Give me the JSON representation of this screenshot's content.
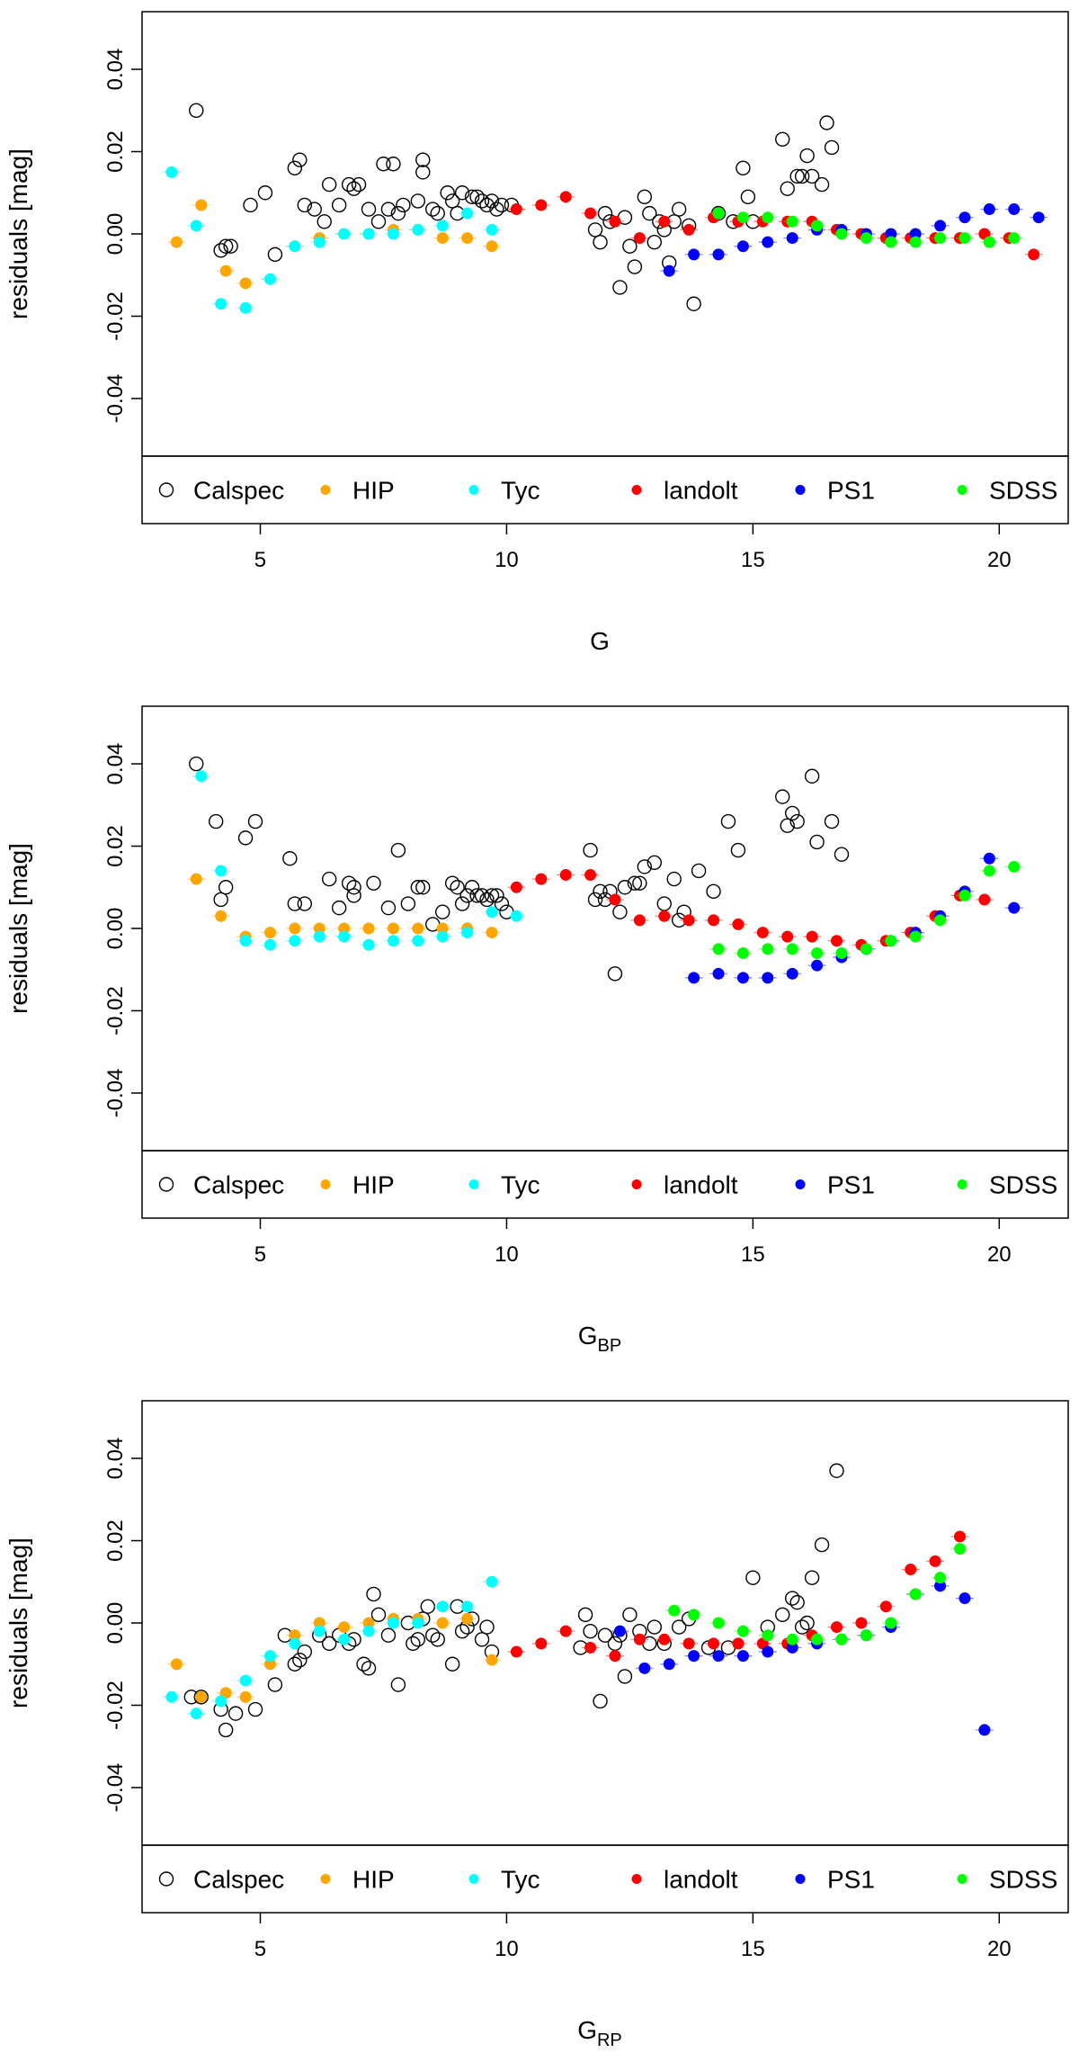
{
  "legend": [
    {
      "key": "Calspec",
      "label": "Calspec",
      "marker": "open-circle",
      "color": "#000000"
    },
    {
      "key": "HIP",
      "label": "HIP",
      "marker": "dot",
      "color": "#ffa500"
    },
    {
      "key": "Tyc",
      "label": "Tyc",
      "marker": "dot",
      "color": "#00ffff"
    },
    {
      "key": "landolt",
      "label": "landolt",
      "marker": "dot",
      "color": "#ff0000"
    },
    {
      "key": "PS1",
      "label": "PS1",
      "marker": "dot",
      "color": "#0000ff"
    },
    {
      "key": "SDSS",
      "label": "SDSS",
      "marker": "dot",
      "color": "#00ff00"
    }
  ],
  "chart_data": [
    {
      "type": "scatter",
      "title": "",
      "xlabel": "G",
      "xlabel_sub": "",
      "ylabel": "residuals [mag]",
      "xlim": [
        2.6,
        21.4
      ],
      "ylim": [
        -0.054,
        0.054
      ],
      "xticks": [
        5,
        10,
        15,
        20
      ],
      "yticks": [
        -0.04,
        -0.02,
        0.0,
        0.02,
        0.04
      ],
      "ytick_labels": [
        "-0.04",
        "-0.02",
        "0.00",
        "0.02",
        "0.04"
      ],
      "series": [
        {
          "name": "Calspec",
          "x": [
            3.7,
            4.2,
            4.3,
            4.4,
            4.8,
            5.1,
            5.3,
            5.7,
            5.8,
            5.9,
            6.1,
            6.3,
            6.4,
            6.6,
            6.8,
            6.9,
            7.0,
            7.2,
            7.4,
            7.5,
            7.6,
            7.7,
            7.8,
            7.9,
            8.2,
            8.3,
            8.3,
            8.5,
            8.6,
            8.8,
            8.9,
            9.0,
            9.1,
            9.3,
            9.4,
            9.5,
            9.6,
            9.7,
            9.8,
            9.9,
            10.1,
            11.8,
            11.9,
            12.0,
            12.1,
            12.3,
            12.4,
            12.5,
            12.6,
            12.8,
            12.9,
            13.0,
            13.1,
            13.2,
            13.3,
            13.4,
            13.5,
            13.7,
            13.8,
            14.3,
            14.6,
            14.8,
            14.9,
            15.0,
            15.6,
            15.7,
            15.9,
            16.0,
            16.1,
            16.2,
            16.4,
            16.5,
            16.6
          ],
          "y": [
            0.03,
            -0.004,
            -0.003,
            -0.003,
            0.007,
            0.01,
            -0.005,
            0.016,
            0.018,
            0.007,
            0.006,
            0.003,
            0.012,
            0.007,
            0.012,
            0.011,
            0.012,
            0.006,
            0.003,
            0.017,
            0.006,
            0.017,
            0.005,
            0.007,
            0.008,
            0.015,
            0.018,
            0.006,
            0.005,
            0.01,
            0.008,
            0.005,
            0.01,
            0.009,
            0.009,
            0.008,
            0.007,
            0.008,
            0.006,
            0.007,
            0.007,
            0.001,
            -0.002,
            0.005,
            0.003,
            -0.013,
            0.004,
            -0.003,
            -0.008,
            0.009,
            0.005,
            -0.002,
            0.003,
            0.001,
            -0.007,
            0.003,
            0.006,
            0.002,
            -0.017,
            0.005,
            0.003,
            0.016,
            0.009,
            0.003,
            0.023,
            0.011,
            0.014,
            0.014,
            0.019,
            0.014,
            0.012,
            0.027,
            0.021
          ]
        },
        {
          "name": "HIP",
          "x": [
            3.3,
            3.8,
            4.3,
            4.7,
            5.2,
            5.7,
            6.2,
            6.7,
            7.2,
            7.7,
            8.2,
            8.7,
            9.2,
            9.7
          ],
          "y": [
            -0.002,
            0.007,
            -0.009,
            -0.012,
            -0.011,
            -0.003,
            -0.001,
            0.0,
            0.0,
            0.001,
            0.001,
            -0.001,
            -0.001,
            -0.003
          ]
        },
        {
          "name": "Tyc",
          "x": [
            3.2,
            3.7,
            4.2,
            4.7,
            5.2,
            5.7,
            6.2,
            6.7,
            7.2,
            7.7,
            8.2,
            8.7,
            9.2,
            9.7
          ],
          "y": [
            0.015,
            0.002,
            -0.017,
            -0.018,
            -0.011,
            -0.003,
            -0.002,
            0.0,
            0.0,
            0.0,
            0.001,
            0.002,
            0.005,
            0.001
          ]
        },
        {
          "name": "landolt",
          "x": [
            10.2,
            10.7,
            11.2,
            11.7,
            12.2,
            12.7,
            13.2,
            13.7,
            14.2,
            14.7,
            15.2,
            15.7,
            16.2,
            16.7,
            17.2,
            17.7,
            18.2,
            18.7,
            19.2,
            19.7,
            20.2,
            20.7
          ],
          "y": [
            0.006,
            0.007,
            0.009,
            0.005,
            0.003,
            -0.001,
            0.003,
            0.001,
            0.004,
            0.003,
            0.003,
            0.003,
            0.003,
            0.001,
            0.0,
            -0.001,
            -0.001,
            -0.001,
            -0.001,
            0.0,
            -0.001,
            -0.005
          ]
        },
        {
          "name": "PS1",
          "x": [
            13.3,
            13.8,
            14.3,
            14.8,
            15.3,
            15.8,
            16.3,
            16.8,
            17.3,
            17.8,
            18.3,
            18.8,
            19.3,
            19.8,
            20.3,
            20.8
          ],
          "y": [
            -0.009,
            -0.005,
            -0.005,
            -0.003,
            -0.002,
            -0.001,
            0.001,
            0.001,
            0.0,
            0.0,
            0.0,
            0.002,
            0.004,
            0.006,
            0.006,
            0.004
          ]
        },
        {
          "name": "SDSS",
          "x": [
            14.3,
            14.8,
            15.3,
            15.8,
            16.3,
            16.8,
            17.3,
            17.8,
            18.3,
            18.8,
            19.3,
            19.8,
            20.3
          ],
          "y": [
            0.005,
            0.004,
            0.004,
            0.003,
            0.002,
            0.0,
            -0.001,
            -0.002,
            -0.002,
            -0.001,
            -0.001,
            -0.002,
            -0.001
          ]
        }
      ]
    },
    {
      "type": "scatter",
      "title": "",
      "xlabel": "G",
      "xlabel_sub": "BP",
      "ylabel": "residuals [mag]",
      "xlim": [
        2.6,
        21.4
      ],
      "ylim": [
        -0.054,
        0.054
      ],
      "xticks": [
        5,
        10,
        15,
        20
      ],
      "yticks": [
        -0.04,
        -0.02,
        0.0,
        0.02,
        0.04
      ],
      "ytick_labels": [
        "-0.04",
        "-0.02",
        "0.00",
        "0.02",
        "0.04"
      ],
      "series": [
        {
          "name": "Calspec",
          "x": [
            3.7,
            4.1,
            4.2,
            4.3,
            4.7,
            4.9,
            5.6,
            5.7,
            5.9,
            6.4,
            6.6,
            6.8,
            6.9,
            6.9,
            7.3,
            7.6,
            7.8,
            8.0,
            8.2,
            8.3,
            8.5,
            8.7,
            8.9,
            9.0,
            9.1,
            9.2,
            9.3,
            9.4,
            9.5,
            9.6,
            9.7,
            9.8,
            9.9,
            10.0,
            11.7,
            11.8,
            11.9,
            12.0,
            12.1,
            12.2,
            12.3,
            12.4,
            12.6,
            12.7,
            12.8,
            13.0,
            13.2,
            13.4,
            13.5,
            13.6,
            13.9,
            14.2,
            14.5,
            14.7,
            15.6,
            15.7,
            15.8,
            15.9,
            16.2,
            16.3,
            16.6,
            16.8
          ],
          "y": [
            0.04,
            0.026,
            0.007,
            0.01,
            0.022,
            0.026,
            0.017,
            0.006,
            0.006,
            0.012,
            0.005,
            0.011,
            0.01,
            0.008,
            0.011,
            0.005,
            0.019,
            0.006,
            0.01,
            0.01,
            0.001,
            0.004,
            0.011,
            0.01,
            0.006,
            0.008,
            0.01,
            0.008,
            0.008,
            0.007,
            0.008,
            0.008,
            0.006,
            0.004,
            0.019,
            0.007,
            0.009,
            0.007,
            0.009,
            -0.011,
            0.004,
            0.01,
            0.011,
            0.011,
            0.015,
            0.016,
            0.006,
            0.012,
            0.002,
            0.004,
            0.014,
            0.009,
            0.026,
            0.019,
            0.032,
            0.025,
            0.028,
            0.026,
            0.037,
            0.021,
            0.026,
            0.018
          ]
        },
        {
          "name": "HIP",
          "x": [
            3.7,
            4.2,
            4.7,
            5.2,
            5.7,
            6.2,
            6.7,
            7.2,
            7.7,
            8.2,
            8.7,
            9.2,
            9.7
          ],
          "y": [
            0.012,
            0.003,
            -0.002,
            -0.001,
            0.0,
            0.0,
            0.0,
            0.0,
            0.0,
            0.0,
            0.0,
            0.0,
            -0.001
          ]
        },
        {
          "name": "Tyc",
          "x": [
            3.8,
            4.2,
            4.7,
            5.2,
            5.7,
            6.2,
            6.7,
            7.2,
            7.7,
            8.2,
            8.7,
            9.2,
            9.7,
            10.2
          ],
          "y": [
            0.037,
            0.014,
            -0.003,
            -0.004,
            -0.003,
            -0.002,
            -0.002,
            -0.004,
            -0.003,
            -0.003,
            -0.002,
            -0.001,
            0.004,
            0.003
          ]
        },
        {
          "name": "landolt",
          "x": [
            10.2,
            10.7,
            11.2,
            11.7,
            12.2,
            12.7,
            13.2,
            13.7,
            14.2,
            14.7,
            15.2,
            15.7,
            16.2,
            16.7,
            17.2,
            17.7,
            18.2,
            18.7,
            19.2,
            19.7
          ],
          "y": [
            0.01,
            0.012,
            0.013,
            0.013,
            0.007,
            0.002,
            0.003,
            0.002,
            0.002,
            0.001,
            -0.001,
            -0.002,
            -0.002,
            -0.003,
            -0.004,
            -0.003,
            -0.001,
            0.003,
            0.008,
            0.007
          ]
        },
        {
          "name": "PS1",
          "x": [
            13.8,
            14.3,
            14.8,
            15.3,
            15.8,
            16.3,
            16.8,
            17.3,
            17.8,
            18.3,
            18.8,
            19.3,
            19.8,
            20.3
          ],
          "y": [
            -0.012,
            -0.011,
            -0.012,
            -0.012,
            -0.011,
            -0.009,
            -0.007,
            -0.005,
            -0.003,
            -0.001,
            0.003,
            0.009,
            0.017,
            0.005
          ]
        },
        {
          "name": "SDSS",
          "x": [
            14.3,
            14.8,
            15.3,
            15.8,
            16.3,
            16.8,
            17.3,
            17.8,
            18.3,
            18.8,
            19.3,
            19.8,
            20.3
          ],
          "y": [
            -0.005,
            -0.006,
            -0.005,
            -0.005,
            -0.006,
            -0.006,
            -0.005,
            -0.003,
            -0.002,
            0.002,
            0.008,
            0.014,
            0.015
          ]
        }
      ]
    },
    {
      "type": "scatter",
      "title": "",
      "xlabel": "G",
      "xlabel_sub": "RP",
      "ylabel": "residuals [mag]",
      "xlim": [
        2.6,
        21.4
      ],
      "ylim": [
        -0.054,
        0.054
      ],
      "xticks": [
        5,
        10,
        15,
        20
      ],
      "yticks": [
        -0.04,
        -0.02,
        0.0,
        0.02,
        0.04
      ],
      "ytick_labels": [
        "-0.04",
        "-0.02",
        "0.00",
        "0.02",
        "0.04"
      ],
      "series": [
        {
          "name": "Calspec",
          "x": [
            3.6,
            3.8,
            4.2,
            4.3,
            4.5,
            4.9,
            5.3,
            5.5,
            5.7,
            5.8,
            5.9,
            6.2,
            6.4,
            6.6,
            6.8,
            6.9,
            7.1,
            7.2,
            7.3,
            7.4,
            7.6,
            7.8,
            8.0,
            8.1,
            8.2,
            8.3,
            8.4,
            8.5,
            8.6,
            8.9,
            9.0,
            9.1,
            9.2,
            9.3,
            9.5,
            9.6,
            9.7,
            11.5,
            11.6,
            11.7,
            11.9,
            12.0,
            12.2,
            12.3,
            12.4,
            12.5,
            12.7,
            12.9,
            13.0,
            13.2,
            13.5,
            13.7,
            14.1,
            14.5,
            15.0,
            15.3,
            15.6,
            15.8,
            15.9,
            16.0,
            16.1,
            16.2,
            16.4,
            16.7
          ],
          "y": [
            -0.018,
            -0.018,
            -0.021,
            -0.026,
            -0.022,
            -0.021,
            -0.015,
            -0.003,
            -0.01,
            -0.009,
            -0.007,
            -0.003,
            -0.005,
            -0.003,
            -0.005,
            -0.004,
            -0.01,
            -0.011,
            0.007,
            0.002,
            -0.003,
            -0.015,
            0.0,
            -0.005,
            -0.004,
            0.001,
            0.004,
            -0.003,
            -0.004,
            -0.01,
            0.004,
            -0.002,
            -0.001,
            0.001,
            -0.004,
            -0.001,
            -0.007,
            -0.006,
            0.002,
            -0.002,
            -0.019,
            -0.003,
            -0.005,
            -0.003,
            -0.013,
            0.002,
            -0.002,
            -0.005,
            -0.001,
            -0.005,
            -0.001,
            0.001,
            -0.006,
            -0.006,
            0.011,
            -0.001,
            0.002,
            0.006,
            0.005,
            -0.001,
            0.0,
            0.011,
            0.019,
            0.037
          ]
        },
        {
          "name": "HIP",
          "x": [
            3.3,
            3.8,
            4.3,
            4.7,
            5.2,
            5.7,
            6.2,
            6.7,
            7.2,
            7.7,
            8.2,
            8.7,
            9.2,
            9.7
          ],
          "y": [
            -0.01,
            -0.018,
            -0.017,
            -0.018,
            -0.01,
            -0.003,
            0.0,
            -0.001,
            0.0,
            0.001,
            0.001,
            0.0,
            0.001,
            -0.009
          ]
        },
        {
          "name": "Tyc",
          "x": [
            3.2,
            3.7,
            4.2,
            4.7,
            5.2,
            5.7,
            6.2,
            6.7,
            7.2,
            7.7,
            8.2,
            8.7,
            9.2,
            9.7
          ],
          "y": [
            -0.018,
            -0.022,
            -0.019,
            -0.014,
            -0.008,
            -0.005,
            -0.002,
            -0.004,
            -0.002,
            0.0,
            0.0,
            0.004,
            0.004,
            0.01
          ]
        },
        {
          "name": "landolt",
          "x": [
            10.2,
            10.7,
            11.2,
            11.7,
            12.2,
            12.7,
            13.2,
            13.7,
            14.2,
            14.7,
            15.2,
            15.7,
            16.2,
            16.7,
            17.2,
            17.7,
            18.2,
            18.7,
            19.2
          ],
          "y": [
            -0.007,
            -0.005,
            -0.002,
            -0.006,
            -0.008,
            -0.004,
            -0.004,
            -0.005,
            -0.005,
            -0.005,
            -0.005,
            -0.005,
            -0.003,
            -0.001,
            0.0,
            0.004,
            0.013,
            0.015,
            0.021
          ]
        },
        {
          "name": "PS1",
          "x": [
            12.3,
            12.8,
            13.3,
            13.8,
            14.3,
            14.8,
            15.3,
            15.8,
            16.3,
            16.8,
            17.3,
            17.8,
            18.3,
            18.8,
            19.3,
            19.7
          ],
          "y": [
            -0.002,
            -0.011,
            -0.01,
            -0.008,
            -0.008,
            -0.008,
            -0.007,
            -0.006,
            -0.005,
            -0.004,
            -0.003,
            -0.001,
            0.007,
            0.009,
            0.006,
            -0.026
          ]
        },
        {
          "name": "SDSS",
          "x": [
            13.4,
            13.8,
            14.3,
            14.8,
            15.3,
            15.8,
            16.3,
            16.8,
            17.3,
            17.8,
            18.3,
            18.8,
            19.2
          ],
          "y": [
            0.003,
            0.002,
            0.0,
            -0.002,
            -0.003,
            -0.004,
            -0.004,
            -0.004,
            -0.003,
            0.0,
            0.007,
            0.011,
            0.018
          ]
        }
      ]
    }
  ]
}
